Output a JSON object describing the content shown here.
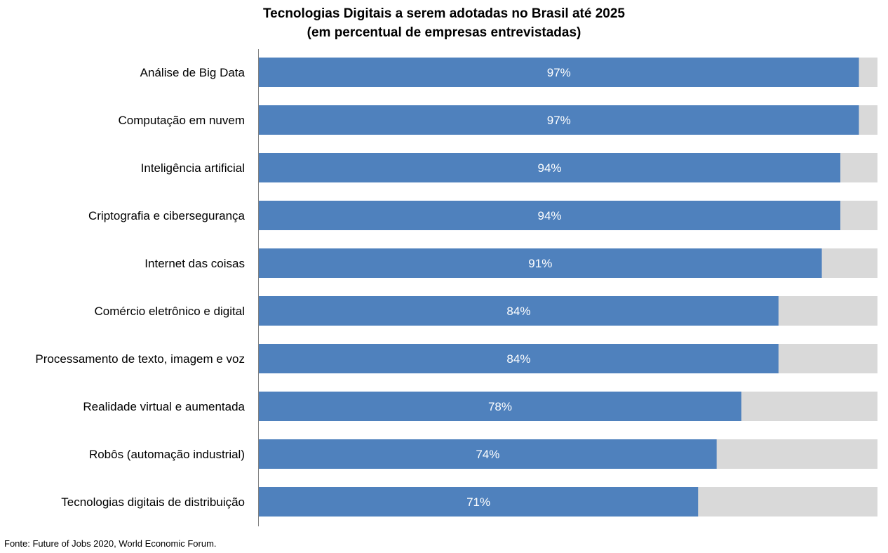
{
  "chart_data": {
    "type": "bar",
    "orientation": "horizontal",
    "stacked_remainder": true,
    "title": "Tecnologias Digitais a serem adotadas no Brasil até 2025",
    "subtitle": "(em percentual de empresas entrevistadas)",
    "categories": [
      "Análise de Big Data",
      "Computação em nuvem",
      "Inteligência artificial",
      "Criptografia e cibersegurança",
      "Internet das coisas",
      "Comércio eletrônico e digital",
      "Processamento de texto, imagem e voz",
      "Realidade virtual e aumentada",
      "Robôs (automação industrial)",
      "Tecnologias digitais de distribuição"
    ],
    "values": [
      97,
      97,
      94,
      94,
      91,
      84,
      84,
      78,
      74,
      71
    ],
    "data_labels": [
      "97%",
      "97%",
      "94%",
      "94%",
      "91%",
      "84%",
      "84%",
      "78%",
      "74%",
      "71%"
    ],
    "xlim": [
      0,
      100
    ],
    "grid": false,
    "legend": "none",
    "colors": {
      "bar": "#4f81bd",
      "remainder": "#d9d9d9",
      "axis": "#808080",
      "label_text": "#ffffff"
    }
  },
  "source": "Fonte: Future of Jobs 2020, World Economic Forum."
}
